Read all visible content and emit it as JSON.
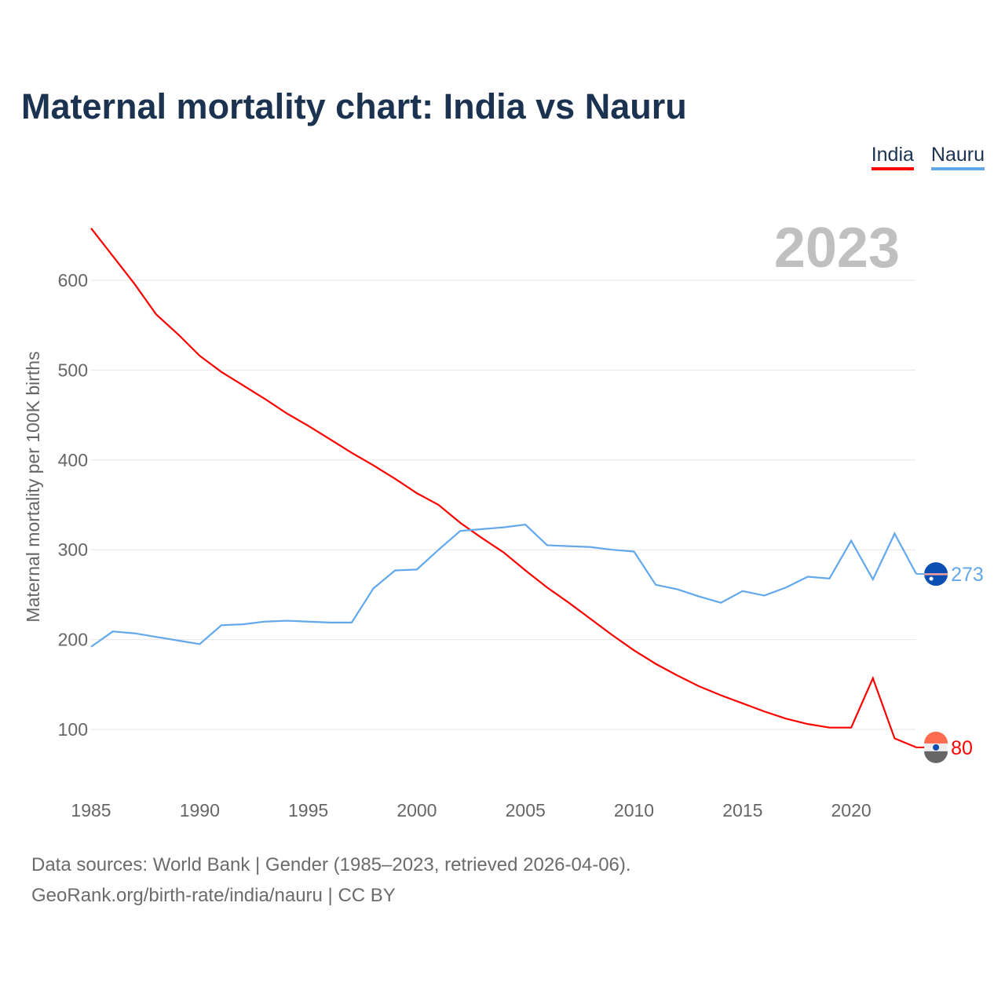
{
  "chart_data": {
    "type": "line",
    "title": "Maternal mortality chart: India vs Nauru",
    "xlabel": "",
    "ylabel": "Maternal mortality per 100K births",
    "year_label": "2023",
    "xlim": [
      1985,
      2023
    ],
    "ylim": [
      45,
      665
    ],
    "x_ticks": [
      1985,
      1990,
      1995,
      2000,
      2005,
      2010,
      2015,
      2020
    ],
    "y_ticks": [
      100,
      200,
      300,
      400,
      500,
      600
    ],
    "grid": true,
    "legend_position": "top-right",
    "x": [
      1985,
      1986,
      1987,
      1988,
      1989,
      1990,
      1991,
      1992,
      1993,
      1994,
      1995,
      1996,
      1997,
      1998,
      1999,
      2000,
      2001,
      2002,
      2003,
      2004,
      2005,
      2006,
      2007,
      2008,
      2009,
      2010,
      2011,
      2012,
      2013,
      2014,
      2015,
      2016,
      2017,
      2018,
      2019,
      2020,
      2021,
      2022,
      2023
    ],
    "series": [
      {
        "name": "India",
        "color": "#ff0000",
        "end_label": "80",
        "values": [
          658,
          627,
          596,
          562,
          540,
          516,
          498,
          483,
          468,
          452,
          438,
          423,
          408,
          394,
          379,
          363,
          350,
          330,
          313,
          297,
          277,
          258,
          241,
          223,
          205,
          188,
          173,
          160,
          148,
          138,
          129,
          120,
          112,
          106,
          102,
          102,
          157,
          90,
          80
        ]
      },
      {
        "name": "Nauru",
        "color": "#63a8ec",
        "end_label": "273",
        "values": [
          192,
          209,
          207,
          203,
          199,
          195,
          216,
          217,
          220,
          221,
          220,
          219,
          219,
          257,
          277,
          278,
          300,
          321,
          323,
          325,
          328,
          305,
          304,
          303,
          300,
          298,
          261,
          256,
          248,
          241,
          254,
          249,
          258,
          270,
          268,
          310,
          267,
          318,
          273
        ]
      }
    ]
  },
  "footer": {
    "line1": "Data sources: World Bank | Gender (1985–2023, retrieved 2026-04-06).",
    "line2": "GeoRank.org/birth-rate/india/nauru | CC BY"
  }
}
